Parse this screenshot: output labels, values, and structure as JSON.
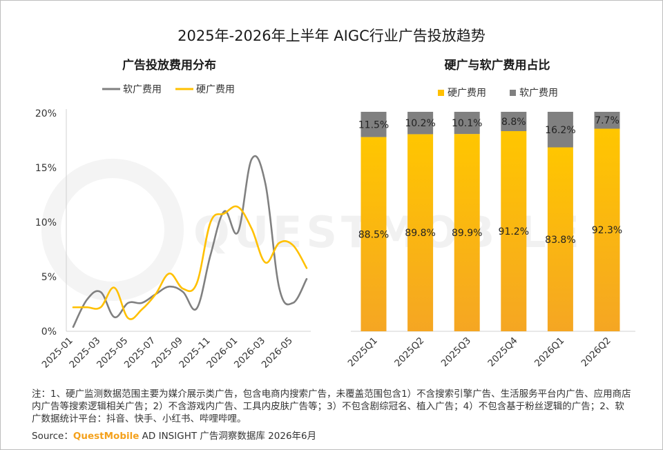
{
  "main_title": "2025年-2026年上半年 AIGC行业广告投放趋势",
  "watermark": "QUESTMOBILE",
  "notes": "注：1、硬广监测数据范围主要为媒介展示类广告，包含电商内搜索广告，未覆盖范围包含1）不含搜索引擎广告、生活服务平台内广告、应用商店内广告等搜索逻辑相关广告；2）不含游戏内广告、工具内皮肤广告等；3）不包含剧综冠名、植入广告；4）不包含基于粉丝逻辑的广告；2、软广数据统计平台：抖音、快手、小红书、哔哩哔哩。",
  "source": {
    "prefix": "Source：",
    "brand": "QuestMobile",
    "rest": " AD INSIGHT 广告洞察数据库 2026年6月"
  },
  "colors": {
    "hard": "#ffc000",
    "soft": "#808080",
    "bar_top": "#ffc600",
    "bar_bottom": "#f5a623"
  },
  "chart_data": [
    {
      "type": "line",
      "title": "广告投放费用分布",
      "x": [
        "2025-01",
        "2025-02",
        "2025-03",
        "2025-04",
        "2025-05",
        "2025-06",
        "2025-07",
        "2025-08",
        "2025-09",
        "2025-10",
        "2025-11",
        "2025-12",
        "2026-01",
        "2026-02",
        "2026-03",
        "2026-04",
        "2026-05",
        "2026-06"
      ],
      "tick_labels": [
        "2025-01",
        "2025-03",
        "2025-05",
        "2025-07",
        "2025-09",
        "2025-11",
        "2026-01",
        "2026-03",
        "2026-05"
      ],
      "y_ticks": [
        "0%",
        "5%",
        "10%",
        "15%",
        "20%"
      ],
      "ylim": [
        0,
        20
      ],
      "legend_position": "top",
      "series": [
        {
          "name": "软广费用",
          "color": "#808080",
          "values": [
            0.4,
            2.9,
            3.6,
            1.3,
            2.6,
            2.6,
            3.4,
            4.1,
            3.6,
            2.1,
            7.0,
            11.0,
            9.1,
            15.8,
            13.5,
            4.0,
            2.6,
            4.8
          ]
        },
        {
          "name": "硬广费用",
          "color": "#ffc000",
          "values": [
            2.2,
            2.2,
            2.2,
            4.0,
            1.2,
            2.0,
            3.4,
            5.3,
            3.9,
            4.4,
            10.0,
            10.8,
            11.4,
            9.4,
            6.3,
            8.1,
            7.9,
            5.8
          ]
        }
      ]
    },
    {
      "type": "bar",
      "stacked": true,
      "title": "硬广与软广费用占比",
      "categories": [
        "2025Q1",
        "2025Q2",
        "2025Q3",
        "2025Q4",
        "2026Q1",
        "2026Q2"
      ],
      "ylim": [
        0,
        100
      ],
      "legend_position": "top",
      "series": [
        {
          "name": "硬广费用",
          "values": [
            88.5,
            89.8,
            89.9,
            91.2,
            83.8,
            92.3
          ],
          "labels": [
            "88.5%",
            "89.8%",
            "89.9%",
            "91.2%",
            "83.8%",
            "92.3%"
          ]
        },
        {
          "name": "软广费用",
          "values": [
            11.5,
            10.2,
            10.1,
            8.8,
            16.2,
            7.7
          ],
          "labels": [
            "11.5%",
            "10.2%",
            "10.1%",
            "8.8%",
            "16.2%",
            "7.7%"
          ]
        }
      ]
    }
  ]
}
